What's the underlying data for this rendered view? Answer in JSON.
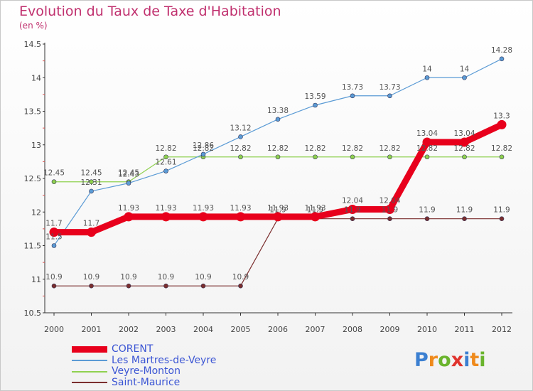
{
  "chart_data": {
    "type": "line",
    "title": "Evolution du Taux de Taxe d'Habitation",
    "unit": "(en %)",
    "x": [
      "2000",
      "2001",
      "2002",
      "2003",
      "2004",
      "2005",
      "2006",
      "2007",
      "2008",
      "2009",
      "2010",
      "2011",
      "2012"
    ],
    "ylim": [
      10.5,
      14.5
    ],
    "yticks": [
      "10.5",
      "11",
      "11.5",
      "12",
      "12.5",
      "13",
      "13.5",
      "14",
      "14.5"
    ],
    "series": [
      {
        "name": "CORENT",
        "color": "#e8001c",
        "values": [
          11.7,
          11.7,
          11.93,
          11.93,
          11.93,
          11.93,
          11.93,
          11.93,
          12.04,
          12.04,
          13.04,
          13.04,
          13.3
        ],
        "labels": [
          "11.7",
          "11.7",
          "11.93",
          "11.93",
          "11.93",
          "11.93",
          "11.93",
          "11.93",
          "12.04",
          "12.04",
          "13.04",
          "13.04",
          "13.3"
        ]
      },
      {
        "name": "Les Martres-de-Veyre",
        "color": "#5b9bd5",
        "values": [
          11.5,
          12.31,
          12.43,
          12.61,
          12.86,
          13.12,
          13.38,
          13.59,
          13.73,
          13.73,
          14,
          14,
          14.28
        ],
        "labels": [
          "11.5",
          "12.31",
          "12.43",
          "12.61",
          "12.86",
          "13.12",
          "13.38",
          "13.59",
          "13.73",
          "13.73",
          "14",
          "14",
          "14.28"
        ]
      },
      {
        "name": "Veyre-Monton",
        "color": "#8fd14f",
        "values": [
          12.45,
          12.45,
          12.45,
          12.82,
          12.82,
          12.82,
          12.82,
          12.82,
          12.82,
          12.82,
          12.82,
          12.82,
          12.82
        ],
        "labels": [
          "12.45",
          "12.45",
          "12.45",
          "12.82",
          "12.82",
          "12.82",
          "12.82",
          "12.82",
          "12.82",
          "12.82",
          "12.82",
          "12.82",
          "12.82"
        ]
      },
      {
        "name": "Saint-Maurice",
        "color": "#7b2e2e",
        "values": [
          10.9,
          10.9,
          10.9,
          10.9,
          10.9,
          10.9,
          11.9,
          11.9,
          11.9,
          11.9,
          11.9,
          11.9,
          11.9
        ],
        "labels": [
          "10.9",
          "10.9",
          "10.9",
          "10.9",
          "10.9",
          "10.9",
          "11.9",
          "11.9",
          "11.9",
          "11.9",
          "11.9",
          "11.9",
          "11.9"
        ]
      }
    ],
    "legend_position": "bottom-left",
    "grid": false
  },
  "logo": {
    "letters": [
      "P",
      "r",
      "o",
      "x",
      "i",
      "t",
      "i"
    ],
    "colors": [
      "#3b7fd1",
      "#ef8a1c",
      "#6ab42d",
      "#e0342e",
      "#3b7fd1",
      "#ef8a1c",
      "#6ab42d"
    ]
  }
}
